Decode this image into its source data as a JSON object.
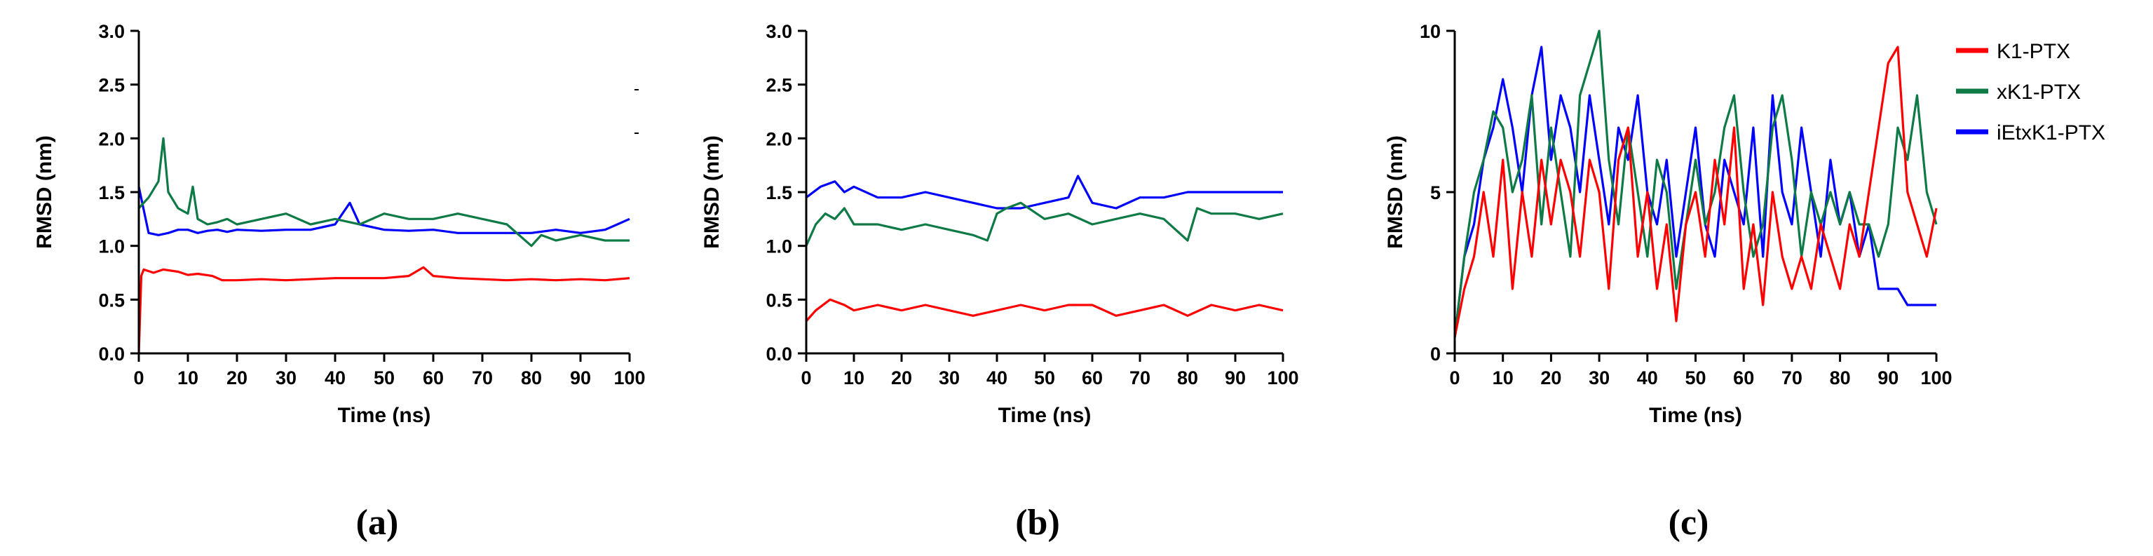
{
  "legend": [
    {
      "name": "K1-PTX",
      "color": "#ff0000"
    },
    {
      "name": "xK1-PTX",
      "color": "#0e7a45"
    },
    {
      "name": "iEtxK1-PTX",
      "color": "#0000ff"
    }
  ],
  "chart_data": [
    {
      "id": "a",
      "type": "line",
      "panel_label": "(a)",
      "xlabel": "Time (ns)",
      "ylabel": "RMSD (nm)",
      "xlim": [
        0,
        100
      ],
      "ylim": [
        0,
        3.0
      ],
      "xticks": [
        0,
        10,
        20,
        30,
        40,
        50,
        60,
        70,
        80,
        90,
        100
      ],
      "yticks": [
        0.0,
        0.5,
        1.0,
        1.5,
        2.0,
        2.5,
        3.0
      ],
      "ytick_labels": [
        "0.0",
        "0.5",
        "1.0",
        "1.5",
        "2.0",
        "2.5",
        "3.0"
      ],
      "series": [
        {
          "name": "iEtxK1-PTX",
          "color": "#0000ff",
          "x": [
            0,
            2,
            4,
            6,
            8,
            10,
            12,
            14,
            16,
            18,
            20,
            25,
            30,
            35,
            40,
            43,
            45,
            50,
            55,
            60,
            65,
            70,
            75,
            80,
            85,
            90,
            95,
            100
          ],
          "y": [
            1.55,
            1.12,
            1.1,
            1.12,
            1.15,
            1.15,
            1.12,
            1.14,
            1.15,
            1.13,
            1.15,
            1.14,
            1.15,
            1.15,
            1.2,
            1.4,
            1.2,
            1.15,
            1.14,
            1.15,
            1.12,
            1.12,
            1.12,
            1.12,
            1.15,
            1.12,
            1.15,
            1.25
          ]
        },
        {
          "name": "xK1-PTX",
          "color": "#0e7a45",
          "x": [
            0,
            2,
            4,
            5,
            6,
            8,
            10,
            11,
            12,
            14,
            16,
            18,
            20,
            25,
            30,
            35,
            40,
            45,
            50,
            55,
            60,
            65,
            70,
            75,
            80,
            82,
            85,
            90,
            95,
            100
          ],
          "y": [
            1.35,
            1.45,
            1.6,
            2.0,
            1.5,
            1.35,
            1.3,
            1.55,
            1.25,
            1.2,
            1.22,
            1.25,
            1.2,
            1.25,
            1.3,
            1.2,
            1.25,
            1.2,
            1.3,
            1.25,
            1.25,
            1.3,
            1.25,
            1.2,
            1.0,
            1.1,
            1.05,
            1.1,
            1.05,
            1.05
          ]
        },
        {
          "name": "K1-PTX",
          "color": "#ff0000",
          "x": [
            0,
            0.5,
            1,
            3,
            5,
            8,
            10,
            12,
            15,
            17,
            20,
            25,
            30,
            35,
            40,
            45,
            50,
            55,
            58,
            60,
            65,
            70,
            75,
            80,
            85,
            90,
            95,
            100
          ],
          "y": [
            0,
            0.72,
            0.78,
            0.75,
            0.78,
            0.76,
            0.73,
            0.74,
            0.72,
            0.68,
            0.68,
            0.69,
            0.68,
            0.69,
            0.7,
            0.7,
            0.7,
            0.72,
            0.8,
            0.72,
            0.7,
            0.69,
            0.68,
            0.69,
            0.68,
            0.69,
            0.68,
            0.7
          ]
        }
      ]
    },
    {
      "id": "b",
      "type": "line",
      "panel_label": "(b)",
      "xlabel": "Time (ns)",
      "ylabel": "RMSD (nm)",
      "xlim": [
        0,
        100
      ],
      "ylim": [
        0,
        3.0
      ],
      "xticks": [
        0,
        10,
        20,
        30,
        40,
        50,
        60,
        70,
        80,
        90,
        100
      ],
      "yticks": [
        0.0,
        0.5,
        1.0,
        1.5,
        2.0,
        2.5,
        3.0
      ],
      "ytick_labels": [
        "0.0",
        "0.5",
        "1.0",
        "1.5",
        "2.0",
        "2.5",
        "3.0"
      ],
      "series": [
        {
          "name": "iEtxK1-PTX",
          "color": "#0000ff",
          "x": [
            0,
            3,
            6,
            8,
            10,
            15,
            20,
            25,
            30,
            35,
            40,
            45,
            50,
            55,
            57,
            60,
            65,
            70,
            75,
            80,
            85,
            90,
            95,
            100
          ],
          "y": [
            1.45,
            1.55,
            1.6,
            1.5,
            1.55,
            1.45,
            1.45,
            1.5,
            1.45,
            1.4,
            1.35,
            1.35,
            1.4,
            1.45,
            1.65,
            1.4,
            1.35,
            1.45,
            1.45,
            1.5,
            1.5,
            1.5,
            1.5,
            1.5
          ]
        },
        {
          "name": "xK1-PTX",
          "color": "#0e7a45",
          "x": [
            0,
            2,
            4,
            6,
            8,
            10,
            15,
            20,
            25,
            30,
            35,
            38,
            40,
            42,
            45,
            50,
            55,
            60,
            65,
            70,
            75,
            80,
            82,
            85,
            90,
            95,
            100
          ],
          "y": [
            1.0,
            1.2,
            1.3,
            1.25,
            1.35,
            1.2,
            1.2,
            1.15,
            1.2,
            1.15,
            1.1,
            1.05,
            1.3,
            1.35,
            1.4,
            1.25,
            1.3,
            1.2,
            1.25,
            1.3,
            1.25,
            1.05,
            1.35,
            1.3,
            1.3,
            1.25,
            1.3
          ]
        },
        {
          "name": "K1-PTX",
          "color": "#ff0000",
          "x": [
            0,
            2,
            5,
            8,
            10,
            15,
            20,
            25,
            30,
            35,
            40,
            45,
            50,
            55,
            60,
            65,
            70,
            75,
            80,
            85,
            90,
            95,
            100
          ],
          "y": [
            0.3,
            0.4,
            0.5,
            0.45,
            0.4,
            0.45,
            0.4,
            0.45,
            0.4,
            0.35,
            0.4,
            0.45,
            0.4,
            0.45,
            0.45,
            0.35,
            0.4,
            0.45,
            0.35,
            0.45,
            0.4,
            0.45,
            0.4
          ]
        }
      ]
    },
    {
      "id": "c",
      "type": "line",
      "panel_label": "(c)",
      "xlabel": "Time (ns)",
      "ylabel": "RMSD (nm)",
      "xlim": [
        0,
        100
      ],
      "ylim": [
        0,
        10
      ],
      "xticks": [
        0,
        10,
        20,
        30,
        40,
        50,
        60,
        70,
        80,
        90,
        100
      ],
      "yticks": [
        0,
        5,
        10
      ],
      "ytick_labels": [
        "0",
        "5",
        "10"
      ],
      "series": [
        {
          "name": "iEtxK1-PTX",
          "color": "#0000ff",
          "x": [
            0,
            2,
            4,
            6,
            8,
            10,
            12,
            14,
            16,
            18,
            20,
            22,
            24,
            26,
            28,
            30,
            32,
            34,
            36,
            38,
            40,
            42,
            44,
            46,
            48,
            50,
            52,
            54,
            56,
            58,
            60,
            62,
            64,
            66,
            68,
            70,
            72,
            74,
            76,
            78,
            80,
            82,
            84,
            86,
            88,
            90,
            92,
            94,
            96,
            98,
            100
          ],
          "y": [
            0.5,
            3,
            4,
            6,
            7,
            8.5,
            7,
            5,
            8,
            9.5,
            6,
            8,
            7,
            5,
            8,
            6,
            4,
            7,
            6,
            8,
            5,
            4,
            6,
            3,
            5,
            7,
            4,
            3,
            6,
            5,
            4,
            7,
            3,
            8,
            5,
            4,
            7,
            5,
            3,
            6,
            4,
            5,
            3,
            4,
            2,
            2,
            2,
            1.5,
            1.5,
            1.5,
            1.5
          ]
        },
        {
          "name": "xK1-PTX",
          "color": "#0e7a45",
          "x": [
            0,
            2,
            4,
            6,
            8,
            10,
            12,
            14,
            16,
            18,
            20,
            22,
            24,
            26,
            28,
            30,
            32,
            34,
            36,
            38,
            40,
            42,
            44,
            46,
            48,
            50,
            52,
            54,
            56,
            58,
            60,
            62,
            64,
            66,
            68,
            70,
            72,
            74,
            76,
            78,
            80,
            82,
            84,
            86,
            88,
            90,
            92,
            94,
            96,
            98,
            100
          ],
          "y": [
            0.5,
            3,
            5,
            6,
            7.5,
            7,
            5,
            6,
            8,
            4,
            7,
            5,
            3,
            8,
            9,
            10,
            6,
            4,
            7,
            5,
            3,
            6,
            5,
            2,
            4,
            6,
            4,
            5,
            7,
            8,
            5,
            3,
            4,
            7,
            8,
            6,
            3,
            5,
            4,
            5,
            4,
            5,
            4,
            4,
            3,
            4,
            7,
            6,
            8,
            5,
            4
          ]
        },
        {
          "name": "K1-PTX",
          "color": "#ff0000",
          "x": [
            0,
            2,
            4,
            6,
            8,
            10,
            12,
            14,
            16,
            18,
            20,
            22,
            24,
            26,
            28,
            30,
            32,
            34,
            36,
            38,
            40,
            42,
            44,
            46,
            48,
            50,
            52,
            54,
            56,
            58,
            60,
            62,
            64,
            66,
            68,
            70,
            72,
            74,
            76,
            78,
            80,
            82,
            84,
            86,
            88,
            90,
            92,
            94,
            96,
            98,
            100
          ],
          "y": [
            0.5,
            2,
            3,
            5,
            3,
            6,
            2,
            5,
            3,
            6,
            4,
            6,
            5,
            3,
            6,
            5,
            2,
            6,
            7,
            3,
            5,
            2,
            4,
            1,
            4,
            5,
            3,
            6,
            4,
            7,
            2,
            4,
            1.5,
            5,
            3,
            2,
            3,
            2,
            4,
            3,
            2,
            4,
            3,
            5,
            7,
            9,
            9.5,
            5,
            4,
            3,
            4.5
          ]
        }
      ]
    }
  ]
}
